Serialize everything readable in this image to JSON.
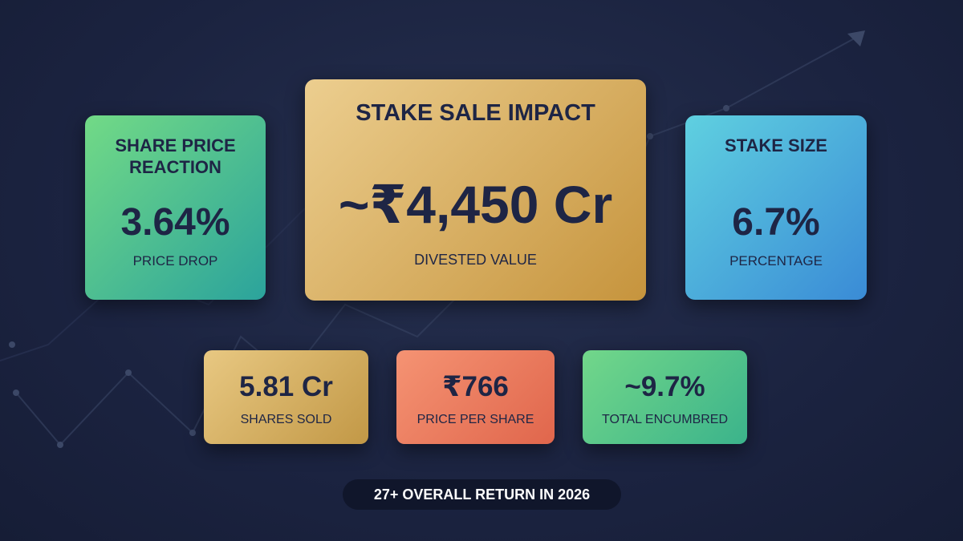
{
  "cards": [
    {
      "title": "SHARE PRICE REACTION",
      "value": "3.64%",
      "label": "PRICE DROP"
    },
    {
      "title": "STAKE SALE IMPACT",
      "value": "~₹4,450 Cr",
      "label": "DIVESTED VALUE"
    },
    {
      "title": "STAKE SIZE",
      "value": "6.7%",
      "label": "PERCENTAGE"
    }
  ],
  "small_cards": [
    {
      "value": "5.81 Cr",
      "label": "SHARES SOLD"
    },
    {
      "value": "₹766",
      "label": "PRICE PER SHARE"
    },
    {
      "value": "~9.7%",
      "label": "TOTAL ENCUMBRED"
    }
  ],
  "footer": "27+ OVERALL RETURN IN 2026"
}
